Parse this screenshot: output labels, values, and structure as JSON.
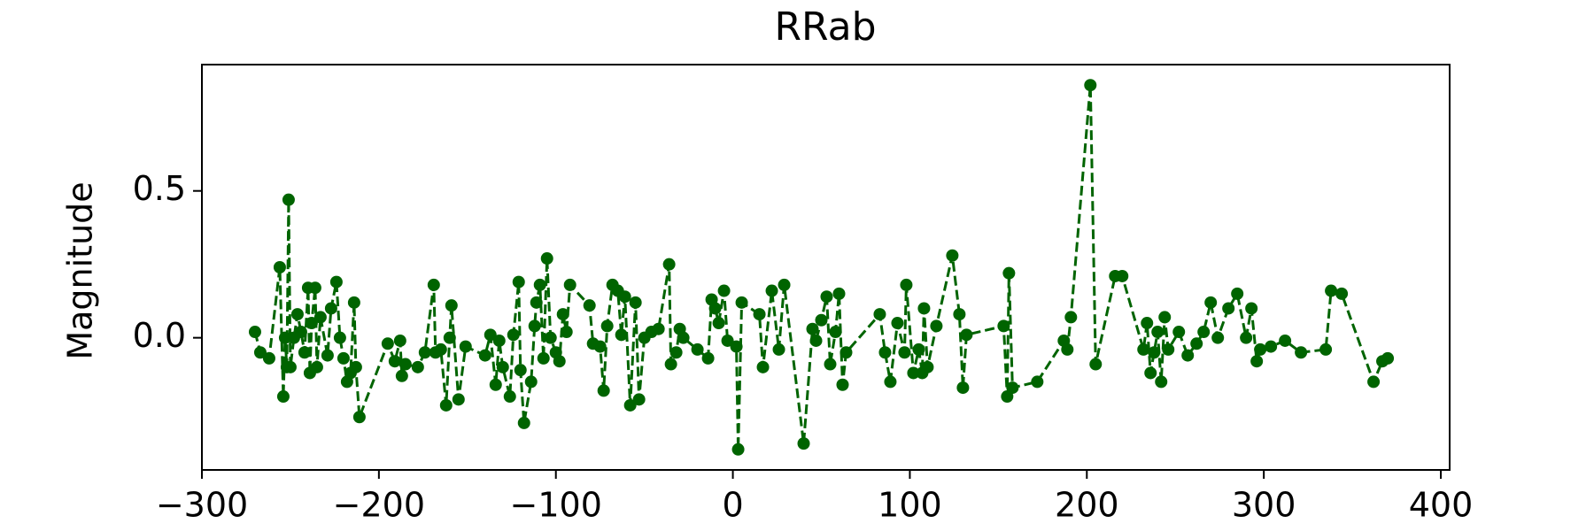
{
  "chart_data": {
    "type": "line",
    "title": "RRab",
    "y_label": "Magnitude",
    "xlim": [
      -300,
      405
    ],
    "ylim": [
      -0.45,
      0.93
    ],
    "xticks": [
      {
        "value": -300,
        "label": "−300"
      },
      {
        "value": -200,
        "label": "−200"
      },
      {
        "value": -100,
        "label": "−100"
      },
      0,
      100,
      200,
      300,
      400
    ],
    "yticks": [
      {
        "value": 0,
        "label": "0.0"
      },
      0.5
    ],
    "series": [
      {
        "name": "RRab",
        "color": "#006400",
        "x": [
          -270,
          -267,
          -262,
          -256,
          -254,
          -253,
          -252,
          -251,
          -250,
          -248,
          -246,
          -244,
          -242,
          -240,
          -239,
          -238,
          -236,
          -235,
          -233,
          -229,
          -227,
          -224,
          -222,
          -220,
          -218,
          -216,
          -214,
          -213,
          -211,
          -195,
          -191,
          -188,
          -187,
          -185,
          -178,
          -174,
          -169,
          -168,
          -165,
          -162,
          -160,
          -159,
          -155,
          -151,
          -140,
          -137,
          -134,
          -132,
          -130,
          -126,
          -124,
          -121,
          -120,
          -118,
          -114,
          -112,
          -111,
          -109,
          -107,
          -105,
          -103,
          -100,
          -98,
          -96,
          -94,
          -92,
          -81,
          -79,
          -75,
          -73,
          -71,
          -68,
          -65,
          -63,
          -61,
          -58,
          -55,
          -53,
          -50,
          -46,
          -42,
          -36,
          -35,
          -32,
          -30,
          -28,
          -20,
          -14,
          -12,
          -10,
          -8,
          -5,
          -3,
          2,
          3,
          5,
          15,
          17,
          22,
          26,
          29,
          40,
          45,
          47,
          50,
          53,
          55,
          58,
          60,
          62,
          64,
          83,
          86,
          89,
          93,
          97,
          98,
          102,
          105,
          107,
          108,
          110,
          115,
          124,
          128,
          130,
          132,
          153,
          155,
          156,
          158,
          172,
          187,
          189,
          191,
          202,
          205,
          216,
          220,
          232,
          234,
          236,
          238,
          240,
          242,
          244,
          246,
          252,
          257,
          262,
          266,
          270,
          274,
          280,
          285,
          290,
          293,
          296,
          298,
          304,
          312,
          321,
          335,
          338,
          344,
          362,
          367,
          370
        ],
        "values": [
          0.02,
          -0.05,
          -0.07,
          0.24,
          -0.2,
          0.0,
          -0.1,
          0.47,
          -0.1,
          0.0,
          0.08,
          0.02,
          -0.05,
          0.17,
          -0.12,
          0.05,
          0.17,
          -0.1,
          0.07,
          -0.06,
          0.1,
          0.19,
          0.0,
          -0.07,
          -0.15,
          -0.12,
          0.12,
          -0.1,
          -0.27,
          -0.02,
          -0.08,
          -0.01,
          -0.13,
          -0.09,
          -0.1,
          -0.05,
          0.18,
          -0.05,
          -0.04,
          -0.23,
          0.0,
          0.11,
          -0.21,
          -0.03,
          -0.06,
          0.01,
          -0.16,
          -0.01,
          -0.1,
          -0.2,
          0.01,
          0.19,
          -0.11,
          -0.29,
          -0.15,
          0.04,
          0.12,
          0.18,
          -0.07,
          0.27,
          0.0,
          -0.05,
          -0.08,
          0.08,
          0.02,
          0.18,
          0.11,
          -0.02,
          -0.03,
          -0.18,
          0.04,
          0.18,
          0.16,
          0.01,
          0.14,
          -0.23,
          0.12,
          -0.21,
          0.0,
          0.02,
          0.03,
          0.25,
          -0.09,
          -0.05,
          0.03,
          0.0,
          -0.04,
          -0.07,
          0.13,
          0.1,
          0.05,
          0.16,
          -0.01,
          -0.03,
          -0.38,
          0.12,
          0.08,
          -0.1,
          0.16,
          -0.04,
          0.18,
          -0.36,
          0.03,
          -0.01,
          0.06,
          0.14,
          -0.09,
          0.02,
          0.15,
          -0.16,
          -0.05,
          0.08,
          -0.05,
          -0.15,
          0.05,
          -0.05,
          0.18,
          -0.12,
          -0.04,
          -0.12,
          0.1,
          -0.1,
          0.04,
          0.28,
          0.08,
          -0.17,
          0.01,
          0.04,
          -0.2,
          0.22,
          -0.17,
          -0.15,
          -0.01,
          -0.04,
          0.07,
          0.86,
          -0.09,
          0.21,
          0.21,
          -0.04,
          0.05,
          -0.12,
          -0.05,
          0.02,
          -0.15,
          0.07,
          -0.04,
          0.02,
          -0.06,
          -0.02,
          0.02,
          0.12,
          0.0,
          0.1,
          0.15,
          0.0,
          0.1,
          -0.08,
          -0.04,
          -0.03,
          -0.01,
          -0.05,
          -0.04,
          0.16,
          0.15,
          -0.15,
          -0.08,
          -0.07
        ]
      }
    ]
  }
}
